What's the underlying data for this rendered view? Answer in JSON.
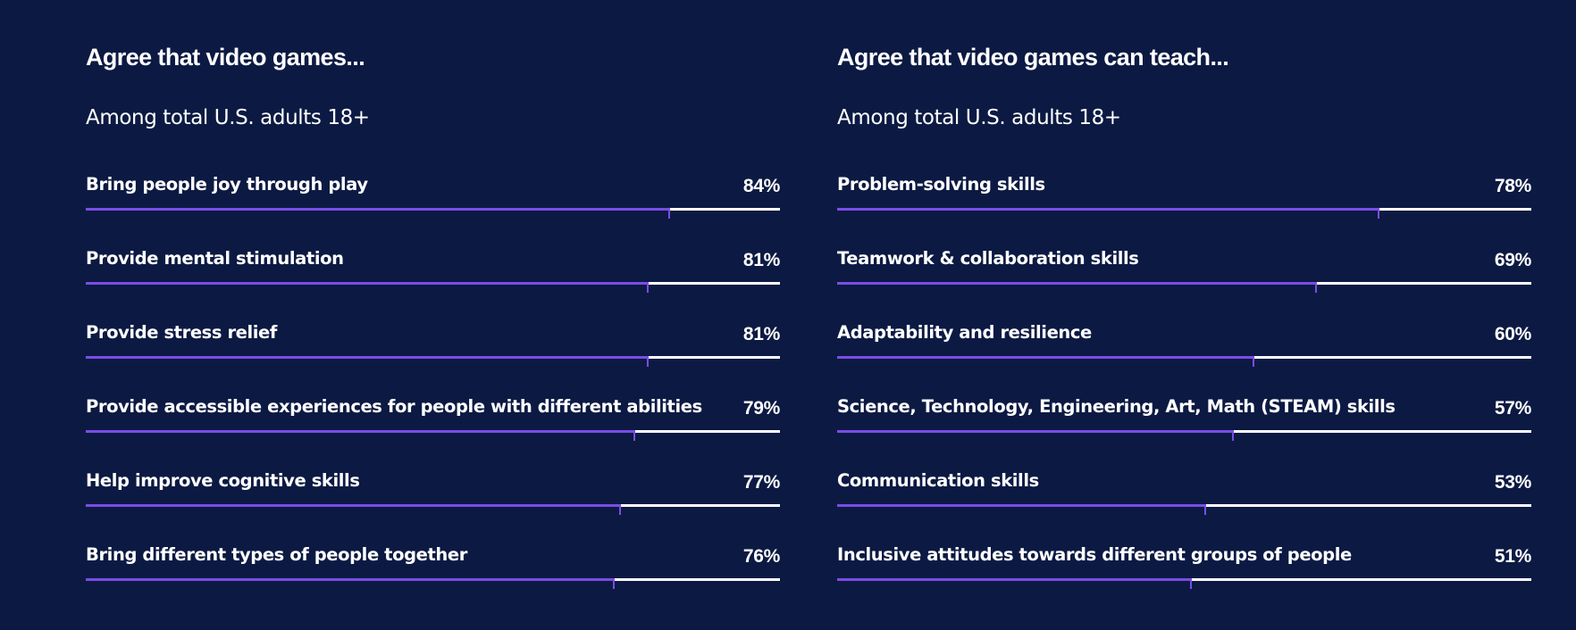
{
  "colors": {
    "background": "#0c1a43",
    "bar_fill": "#7b4ce6",
    "bar_track": "#ffffff",
    "text": "#ffffff"
  },
  "chart_data": [
    {
      "type": "bar",
      "orientation": "horizontal",
      "title": "Agree that video games...",
      "subtitle": "Among total U.S. adults 18+",
      "unit": "%",
      "xlim": [
        0,
        100
      ],
      "grid": false,
      "categories": [
        "Bring people joy through play",
        "Provide mental stimulation",
        "Provide stress relief",
        "Provide accessible experiences for people with different abilities",
        "Help improve cognitive skills",
        "Bring different types of people together"
      ],
      "values": [
        84,
        81,
        81,
        79,
        77,
        76
      ],
      "value_labels": [
        "84%",
        "81%",
        "81%",
        "79%",
        "77%",
        "76%"
      ]
    },
    {
      "type": "bar",
      "orientation": "horizontal",
      "title": "Agree that video games can teach...",
      "subtitle": "Among total U.S. adults 18+",
      "unit": "%",
      "xlim": [
        0,
        100
      ],
      "grid": false,
      "categories": [
        "Problem-solving skills",
        "Teamwork & collaboration skills",
        "Adaptability and resilience",
        "Science, Technology, Engineering, Art, Math (STEAM) skills",
        "Communication skills",
        "Inclusive attitudes towards different groups of people"
      ],
      "values": [
        78,
        69,
        60,
        57,
        53,
        51
      ],
      "value_labels": [
        "78%",
        "69%",
        "60%",
        "57%",
        "53%",
        "51%"
      ]
    }
  ]
}
